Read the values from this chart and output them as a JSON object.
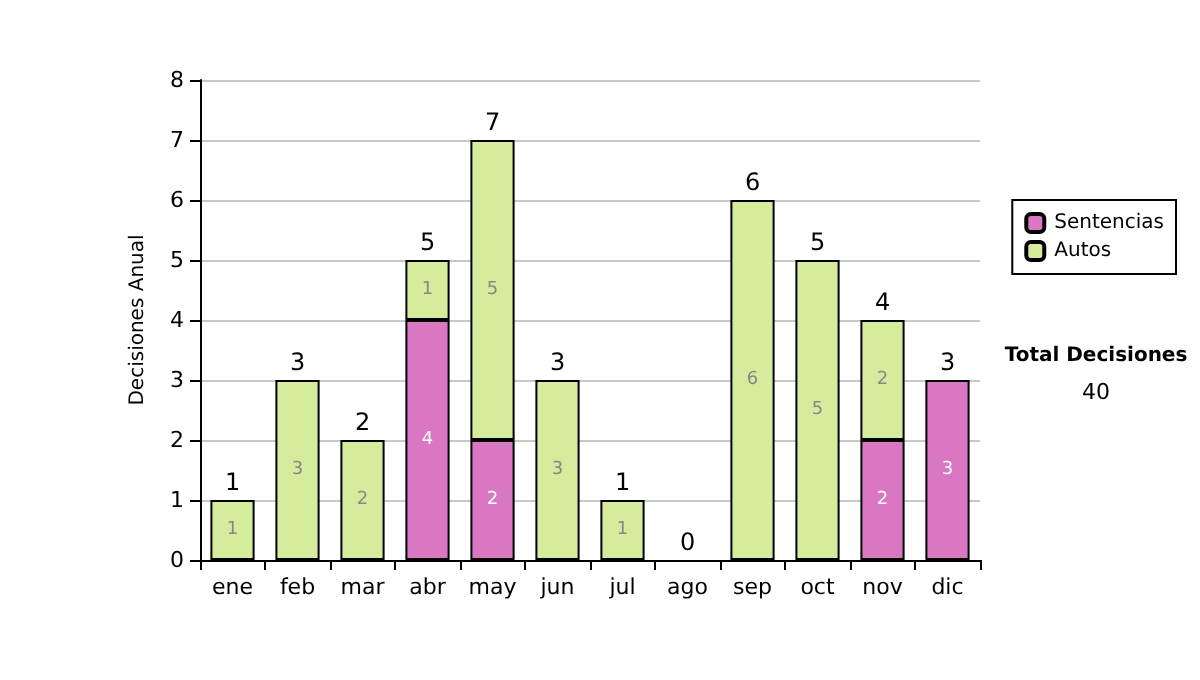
{
  "chart_data": {
    "type": "bar",
    "stacked": true,
    "ylabel": "Decisiones Anual",
    "categories": [
      "ene",
      "feb",
      "mar",
      "abr",
      "may",
      "jun",
      "jul",
      "ago",
      "sep",
      "oct",
      "nov",
      "dic"
    ],
    "series": [
      {
        "name": "Sentencias",
        "color": "#d977c2",
        "values": [
          0,
          0,
          0,
          4,
          2,
          0,
          0,
          0,
          0,
          0,
          2,
          3
        ],
        "value_labels": [
          null,
          null,
          null,
          "4",
          "2",
          null,
          null,
          null,
          null,
          null,
          "2",
          "3"
        ]
      },
      {
        "name": "Autos",
        "color": "#d5ec9c",
        "values": [
          1,
          3,
          2,
          1,
          5,
          3,
          1,
          0,
          6,
          5,
          2,
          0
        ],
        "value_labels": [
          "1",
          "3",
          "2",
          "1",
          "5",
          "3",
          "1",
          null,
          "6",
          "5",
          "2",
          null
        ]
      }
    ],
    "totals": [
      "1",
      "3",
      "2",
      "5",
      "7",
      "3",
      "1",
      "0",
      "6",
      "5",
      "4",
      "3"
    ],
    "ylim": [
      0,
      8
    ],
    "yticks": [
      0,
      1,
      2,
      3,
      4,
      5,
      6,
      7,
      8
    ],
    "grid": "y",
    "legend": "right",
    "annotations": [
      "Total Decisiones",
      "40"
    ]
  }
}
